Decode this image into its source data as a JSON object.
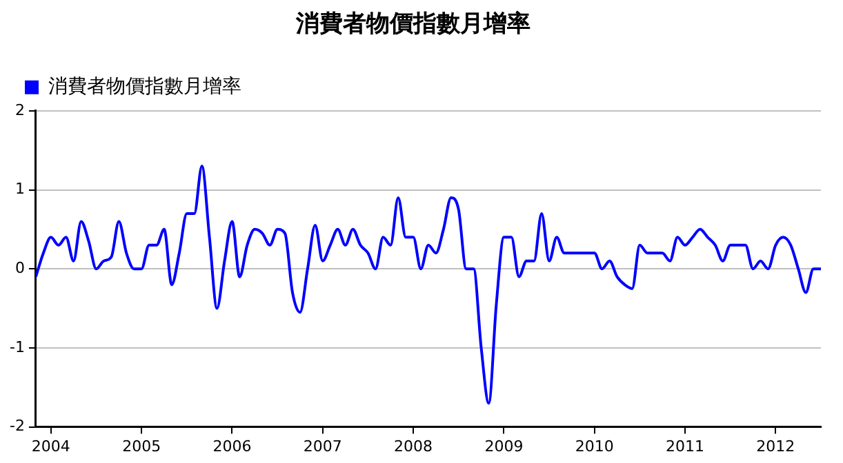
{
  "chart_data": {
    "type": "line",
    "title": "消費者物價指數月增率",
    "x": [
      "2003-11",
      "2003-12",
      "2004-01",
      "2004-02",
      "2004-03",
      "2004-04",
      "2004-05",
      "2004-06",
      "2004-07",
      "2004-08",
      "2004-09",
      "2004-10",
      "2004-11",
      "2004-12",
      "2005-01",
      "2005-02",
      "2005-03",
      "2005-04",
      "2005-05",
      "2005-06",
      "2005-07",
      "2005-08",
      "2005-09",
      "2005-10",
      "2005-11",
      "2005-12",
      "2006-01",
      "2006-02",
      "2006-03",
      "2006-04",
      "2006-05",
      "2006-06",
      "2006-07",
      "2006-08",
      "2006-09",
      "2006-10",
      "2006-11",
      "2006-12",
      "2007-01",
      "2007-02",
      "2007-03",
      "2007-04",
      "2007-05",
      "2007-06",
      "2007-07",
      "2007-08",
      "2007-09",
      "2007-10",
      "2007-11",
      "2007-12",
      "2008-01",
      "2008-02",
      "2008-03",
      "2008-04",
      "2008-05",
      "2008-06",
      "2008-07",
      "2008-08",
      "2008-09",
      "2008-10",
      "2008-11",
      "2008-12",
      "2009-01",
      "2009-02",
      "2009-03",
      "2009-04",
      "2009-05",
      "2009-06",
      "2009-07",
      "2009-08",
      "2009-09",
      "2009-10",
      "2009-11",
      "2009-12",
      "2010-01",
      "2010-02",
      "2010-03",
      "2010-04",
      "2010-05",
      "2010-06",
      "2010-07",
      "2010-08",
      "2010-09",
      "2010-10",
      "2010-11",
      "2010-12",
      "2011-01",
      "2011-02",
      "2011-03",
      "2011-04",
      "2011-05",
      "2011-06",
      "2011-07",
      "2011-08",
      "2011-09",
      "2011-10",
      "2011-11",
      "2011-12",
      "2012-01",
      "2012-02",
      "2012-03",
      "2012-04",
      "2012-05",
      "2012-06",
      "2012-07"
    ],
    "series": [
      {
        "name": "消費者物價指數月增率",
        "color": "#0000ff",
        "values": [
          -0.1,
          0.2,
          0.4,
          0.3,
          0.4,
          0.1,
          0.6,
          0.35,
          0.0,
          0.1,
          0.15,
          0.6,
          0.2,
          0.0,
          0.0,
          0.3,
          0.3,
          0.5,
          -0.2,
          0.2,
          0.7,
          0.7,
          1.3,
          0.4,
          -0.5,
          0.1,
          0.6,
          -0.1,
          0.3,
          0.5,
          0.45,
          0.3,
          0.5,
          0.45,
          -0.3,
          -0.55,
          0.0,
          0.55,
          0.1,
          0.3,
          0.5,
          0.3,
          0.5,
          0.3,
          0.2,
          0.0,
          0.4,
          0.3,
          0.9,
          0.4,
          0.4,
          0.0,
          0.3,
          0.2,
          0.5,
          0.9,
          0.75,
          0.0,
          0.0,
          -1.0,
          -1.7,
          -0.45,
          0.4,
          0.4,
          -0.1,
          0.1,
          0.1,
          0.7,
          0.1,
          0.4,
          0.2,
          0.2,
          0.2,
          0.2,
          0.2,
          0.0,
          0.1,
          -0.1,
          -0.2,
          -0.25,
          0.3,
          0.2,
          0.2,
          0.2,
          0.1,
          0.4,
          0.3,
          0.4,
          0.5,
          0.4,
          0.3,
          0.1,
          0.3,
          0.3,
          0.3,
          0.0,
          0.1,
          0.0,
          0.3,
          0.4,
          0.3,
          0.0,
          -0.3,
          0.0,
          0.0
        ]
      }
    ],
    "xlim": [
      "2003-11",
      "2012-07"
    ],
    "xticks": [
      "2004",
      "2005",
      "2006",
      "2007",
      "2008",
      "2009",
      "2010",
      "2011",
      "2012"
    ],
    "ylim": [
      -2,
      2
    ],
    "yticks": [
      -2,
      -1,
      0,
      1,
      2
    ],
    "grid": "y",
    "legend": "top left",
    "marker": "none",
    "line_style": "solid"
  }
}
